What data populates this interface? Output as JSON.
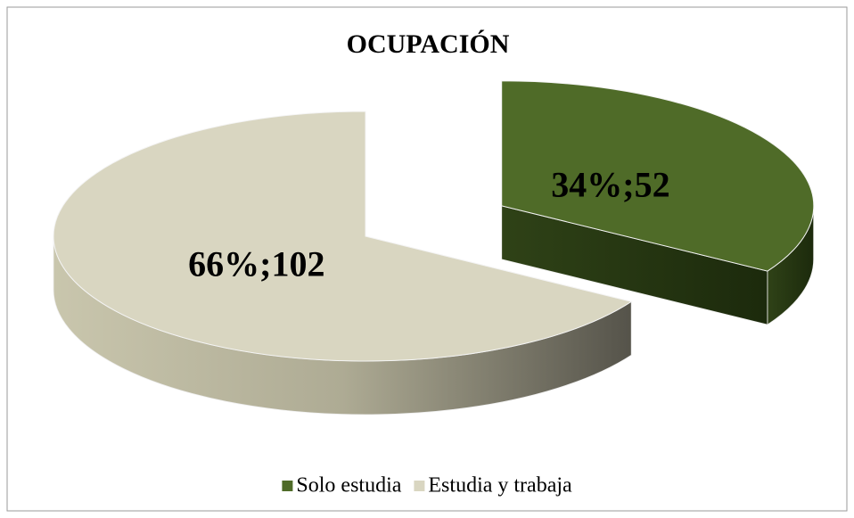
{
  "chart_data": {
    "type": "pie3d",
    "title": "OCUPACIÓN",
    "categories": [
      "Solo estudia",
      "Estudia y trabaja"
    ],
    "values": [
      52,
      102
    ],
    "value_labels": [
      "34%;52",
      "66%;102"
    ],
    "colors": [
      "#4f6b28",
      "#d9d6c1"
    ],
    "legend": "bottom"
  }
}
